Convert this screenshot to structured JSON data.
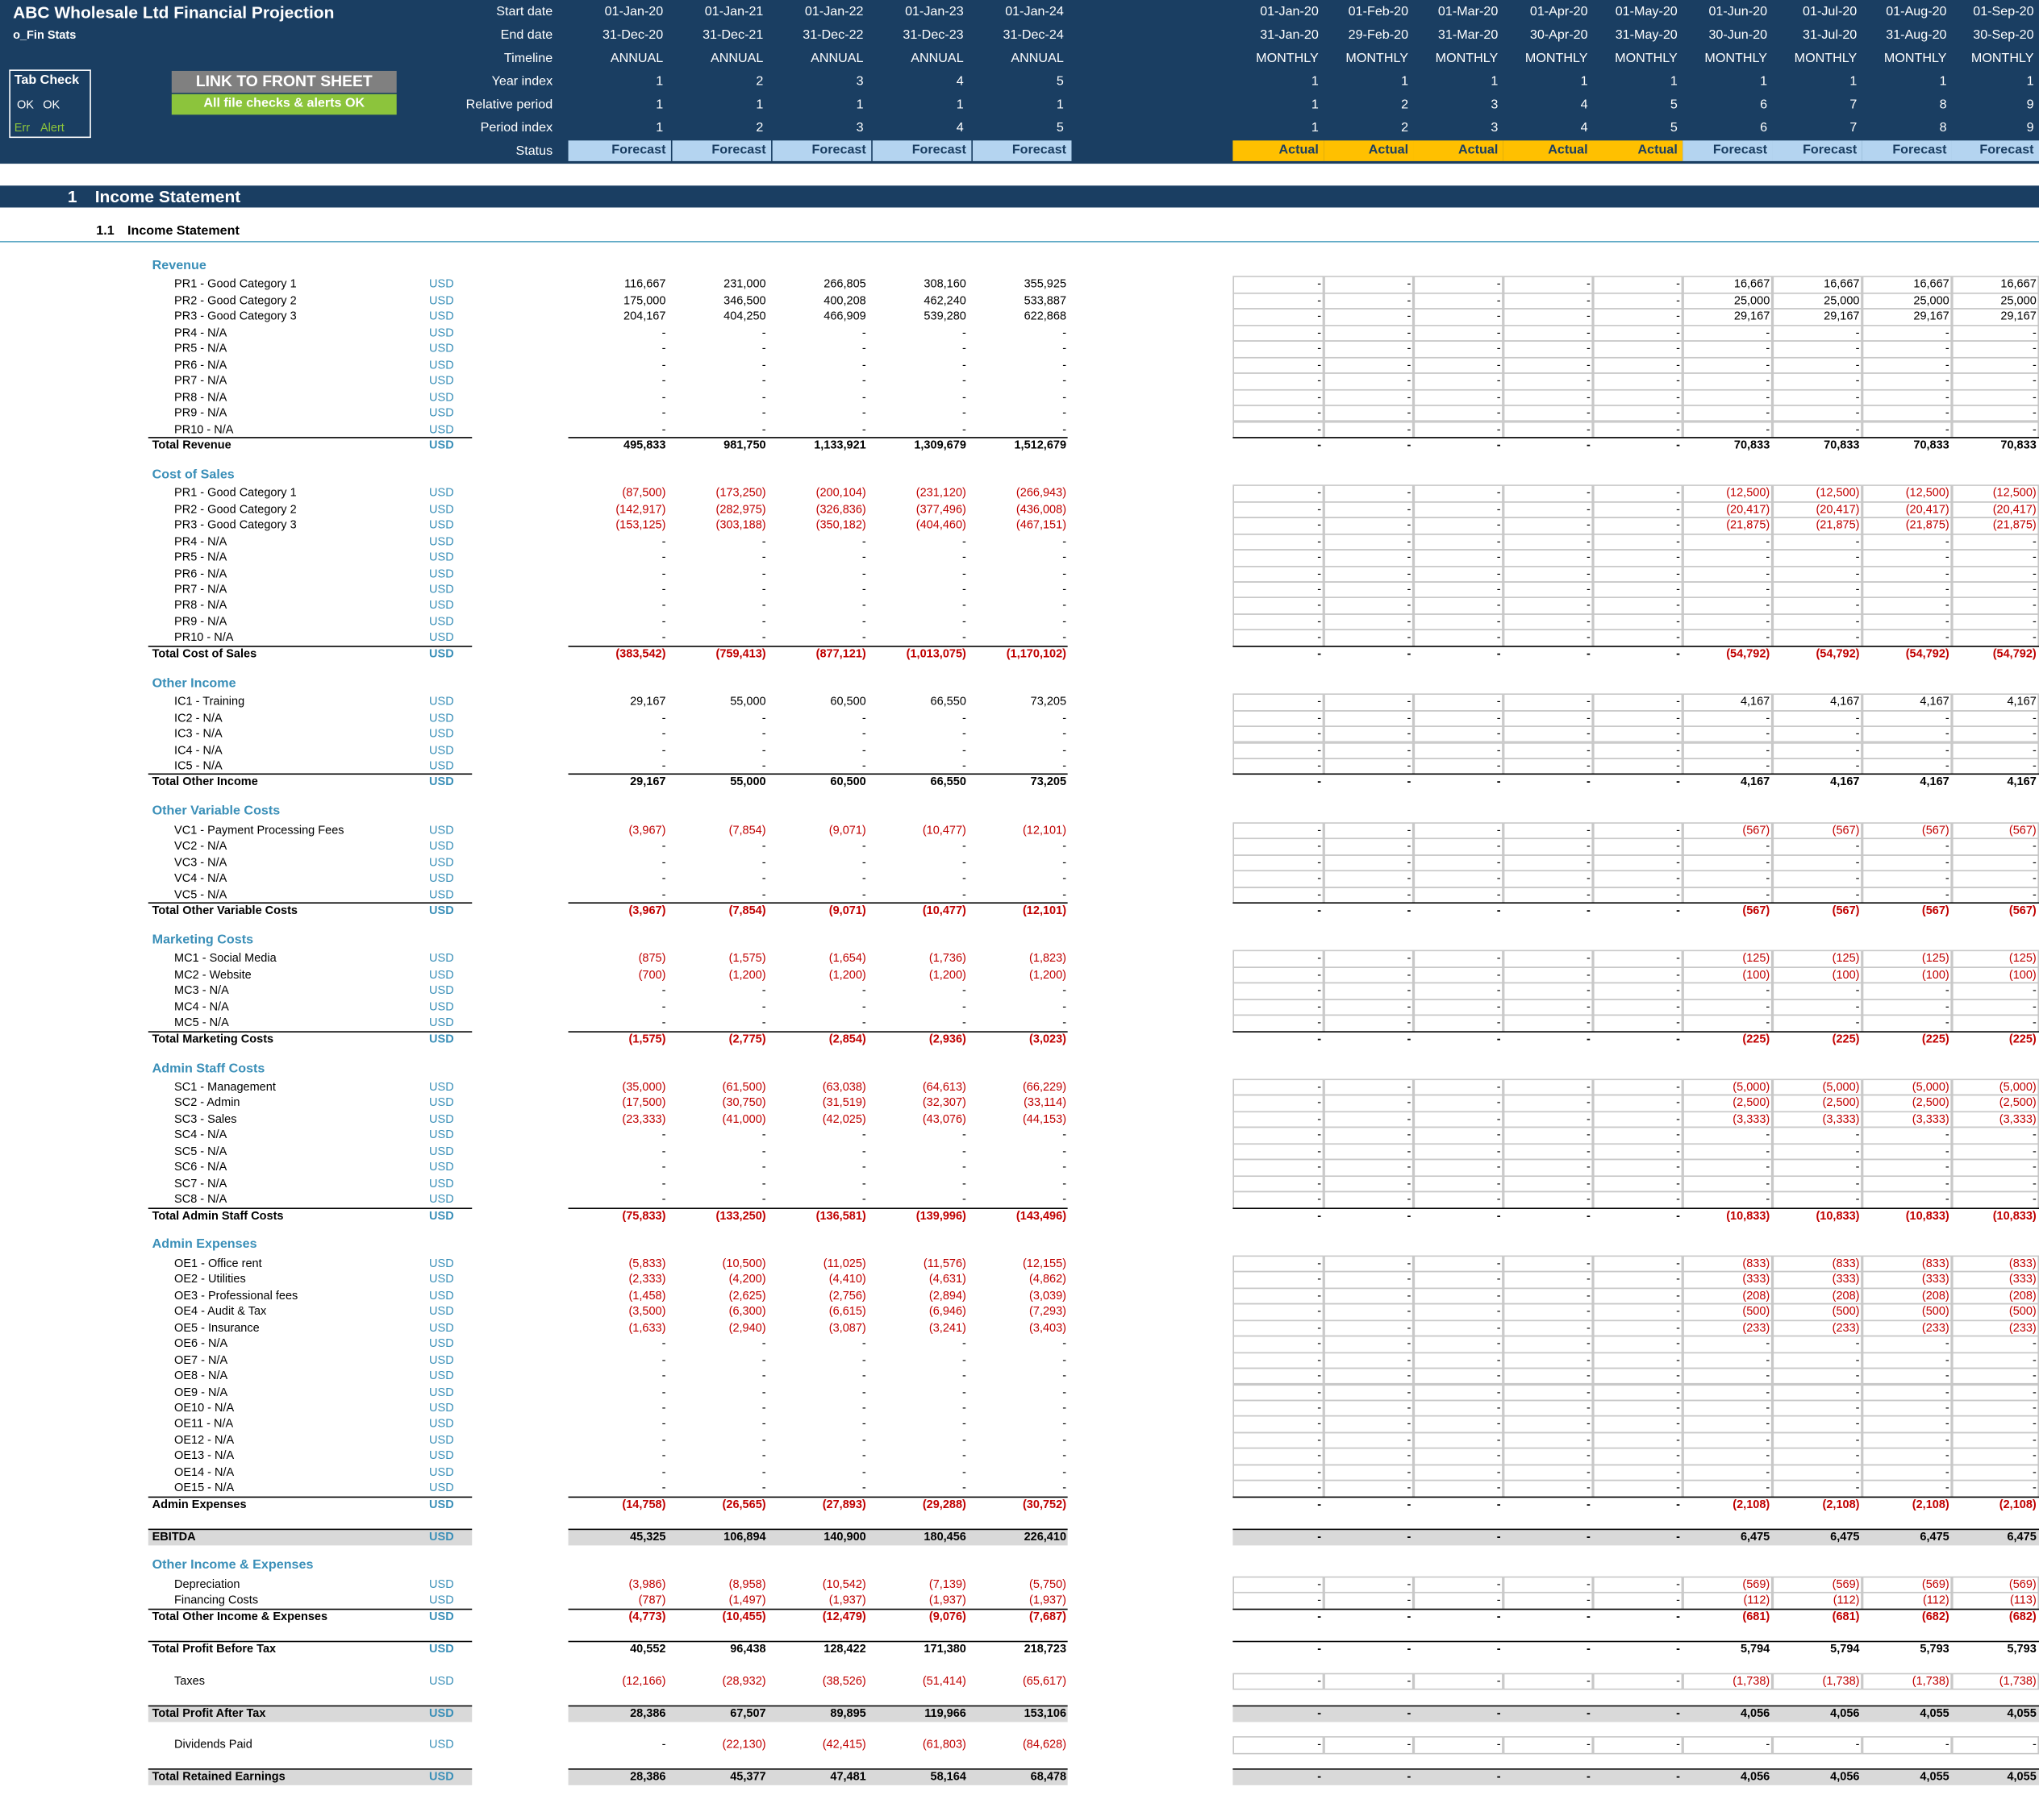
{
  "header": {
    "title": "ABC Wholesale Ltd Financial Projection",
    "sheet": "o_Fin Stats",
    "tab_check": {
      "title": "Tab Check",
      "ok1": "OK",
      "ok2": "OK",
      "err": "Err",
      "alert": "Alert"
    },
    "link_button": "LINK TO FRONT SHEET",
    "checks_ok": "All file checks & alerts OK",
    "labels": {
      "start": "Start date",
      "end": "End date",
      "timeline": "Timeline",
      "year": "Year index",
      "rel": "Relative period",
      "period": "Period index",
      "status": "Status"
    },
    "annual": {
      "start": [
        "01-Jan-20",
        "01-Jan-21",
        "01-Jan-22",
        "01-Jan-23",
        "01-Jan-24"
      ],
      "end": [
        "31-Dec-20",
        "31-Dec-21",
        "31-Dec-22",
        "31-Dec-23",
        "31-Dec-24"
      ],
      "timeline": [
        "ANNUAL",
        "ANNUAL",
        "ANNUAL",
        "ANNUAL",
        "ANNUAL"
      ],
      "year": [
        "1",
        "2",
        "3",
        "4",
        "5"
      ],
      "rel": [
        "1",
        "1",
        "1",
        "1",
        "1"
      ],
      "period": [
        "1",
        "2",
        "3",
        "4",
        "5"
      ],
      "status": [
        "Forecast",
        "Forecast",
        "Forecast",
        "Forecast",
        "Forecast"
      ]
    },
    "monthly": {
      "start": [
        "01-Jan-20",
        "01-Feb-20",
        "01-Mar-20",
        "01-Apr-20",
        "01-May-20",
        "01-Jun-20",
        "01-Jul-20",
        "01-Aug-20",
        "01-Sep-20"
      ],
      "end": [
        "31-Jan-20",
        "29-Feb-20",
        "31-Mar-20",
        "30-Apr-20",
        "31-May-20",
        "30-Jun-20",
        "31-Jul-20",
        "31-Aug-20",
        "30-Sep-20"
      ],
      "timeline": [
        "MONTHLY",
        "MONTHLY",
        "MONTHLY",
        "MONTHLY",
        "MONTHLY",
        "MONTHLY",
        "MONTHLY",
        "MONTHLY",
        "MONTHLY"
      ],
      "year": [
        "1",
        "1",
        "1",
        "1",
        "1",
        "1",
        "1",
        "1",
        "1"
      ],
      "rel": [
        "1",
        "2",
        "3",
        "4",
        "5",
        "6",
        "7",
        "8",
        "9"
      ],
      "period": [
        "1",
        "2",
        "3",
        "4",
        "5",
        "6",
        "7",
        "8",
        "9"
      ],
      "status": [
        "Actual",
        "Actual",
        "Actual",
        "Actual",
        "Actual",
        "Forecast",
        "Forecast",
        "Forecast",
        "Forecast"
      ]
    }
  },
  "section": {
    "num": "1",
    "title": "Income Statement",
    "sub_num": "1.1",
    "sub_title": "Income Statement"
  },
  "unit": "USD",
  "colors": {
    "navy": "#1a3e62",
    "forecast": "#b4d4f0",
    "actual": "#ffc000",
    "accent": "#3a8fb8",
    "negative": "#c00000",
    "grey": "#d9d9d9"
  },
  "groups": [
    {
      "title": "Revenue",
      "rows": [
        {
          "label": "PR1 - Good Category 1",
          "a": [
            "116,667",
            "231,000",
            "266,805",
            "308,160",
            "355,925"
          ],
          "m": [
            "-",
            "-",
            "-",
            "-",
            "-",
            "16,667",
            "16,667",
            "16,667",
            "16,667"
          ]
        },
        {
          "label": "PR2 - Good Category 2",
          "a": [
            "175,000",
            "346,500",
            "400,208",
            "462,240",
            "533,887"
          ],
          "m": [
            "-",
            "-",
            "-",
            "-",
            "-",
            "25,000",
            "25,000",
            "25,000",
            "25,000"
          ]
        },
        {
          "label": "PR3 - Good Category 3",
          "a": [
            "204,167",
            "404,250",
            "466,909",
            "539,280",
            "622,868"
          ],
          "m": [
            "-",
            "-",
            "-",
            "-",
            "-",
            "29,167",
            "29,167",
            "29,167",
            "29,167"
          ]
        },
        {
          "label": "PR4 - N/A"
        },
        {
          "label": "PR5 - N/A"
        },
        {
          "label": "PR6 - N/A"
        },
        {
          "label": "PR7 - N/A"
        },
        {
          "label": "PR8 - N/A"
        },
        {
          "label": "PR9 - N/A"
        },
        {
          "label": "PR10 - N/A"
        }
      ],
      "total": {
        "label": "Total Revenue",
        "a": [
          "495,833",
          "981,750",
          "1,133,921",
          "1,309,679",
          "1,512,679"
        ],
        "m": [
          "-",
          "-",
          "-",
          "-",
          "-",
          "70,833",
          "70,833",
          "70,833",
          "70,833"
        ]
      }
    },
    {
      "title": "Cost of Sales",
      "rows": [
        {
          "label": "PR1 - Good Category 1",
          "a": [
            "(87,500)",
            "(173,250)",
            "(200,104)",
            "(231,120)",
            "(266,943)"
          ],
          "m": [
            "-",
            "-",
            "-",
            "-",
            "-",
            "(12,500)",
            "(12,500)",
            "(12,500)",
            "(12,500)"
          ]
        },
        {
          "label": "PR2 - Good Category 2",
          "a": [
            "(142,917)",
            "(282,975)",
            "(326,836)",
            "(377,496)",
            "(436,008)"
          ],
          "m": [
            "-",
            "-",
            "-",
            "-",
            "-",
            "(20,417)",
            "(20,417)",
            "(20,417)",
            "(20,417)"
          ]
        },
        {
          "label": "PR3 - Good Category 3",
          "a": [
            "(153,125)",
            "(303,188)",
            "(350,182)",
            "(404,460)",
            "(467,151)"
          ],
          "m": [
            "-",
            "-",
            "-",
            "-",
            "-",
            "(21,875)",
            "(21,875)",
            "(21,875)",
            "(21,875)"
          ]
        },
        {
          "label": "PR4 - N/A"
        },
        {
          "label": "PR5 - N/A"
        },
        {
          "label": "PR6 - N/A"
        },
        {
          "label": "PR7 - N/A"
        },
        {
          "label": "PR8 - N/A"
        },
        {
          "label": "PR9 - N/A"
        },
        {
          "label": "PR10 - N/A"
        }
      ],
      "total": {
        "label": "Total Cost of Sales",
        "a": [
          "(383,542)",
          "(759,413)",
          "(877,121)",
          "(1,013,075)",
          "(1,170,102)"
        ],
        "m": [
          "-",
          "-",
          "-",
          "-",
          "-",
          "(54,792)",
          "(54,792)",
          "(54,792)",
          "(54,792)"
        ]
      }
    },
    {
      "title": "Other Income",
      "rows": [
        {
          "label": "IC1 - Training",
          "a": [
            "29,167",
            "55,000",
            "60,500",
            "66,550",
            "73,205"
          ],
          "m": [
            "-",
            "-",
            "-",
            "-",
            "-",
            "4,167",
            "4,167",
            "4,167",
            "4,167"
          ]
        },
        {
          "label": "IC2 - N/A"
        },
        {
          "label": "IC3 - N/A"
        },
        {
          "label": "IC4 - N/A"
        },
        {
          "label": "IC5 - N/A"
        }
      ],
      "total": {
        "label": "Total Other Income",
        "a": [
          "29,167",
          "55,000",
          "60,500",
          "66,550",
          "73,205"
        ],
        "m": [
          "-",
          "-",
          "-",
          "-",
          "-",
          "4,167",
          "4,167",
          "4,167",
          "4,167"
        ]
      }
    },
    {
      "title": "Other Variable Costs",
      "rows": [
        {
          "label": "VC1 - Payment Processing Fees",
          "a": [
            "(3,967)",
            "(7,854)",
            "(9,071)",
            "(10,477)",
            "(12,101)"
          ],
          "m": [
            "-",
            "-",
            "-",
            "-",
            "-",
            "(567)",
            "(567)",
            "(567)",
            "(567)"
          ]
        },
        {
          "label": "VC2 - N/A"
        },
        {
          "label": "VC3 - N/A"
        },
        {
          "label": "VC4 - N/A"
        },
        {
          "label": "VC5 - N/A"
        }
      ],
      "total": {
        "label": "Total Other Variable Costs",
        "a": [
          "(3,967)",
          "(7,854)",
          "(9,071)",
          "(10,477)",
          "(12,101)"
        ],
        "m": [
          "-",
          "-",
          "-",
          "-",
          "-",
          "(567)",
          "(567)",
          "(567)",
          "(567)"
        ]
      }
    },
    {
      "title": "Marketing Costs",
      "rows": [
        {
          "label": "MC1 - Social Media",
          "a": [
            "(875)",
            "(1,575)",
            "(1,654)",
            "(1,736)",
            "(1,823)"
          ],
          "m": [
            "-",
            "-",
            "-",
            "-",
            "-",
            "(125)",
            "(125)",
            "(125)",
            "(125)"
          ]
        },
        {
          "label": "MC2 - Website",
          "a": [
            "(700)",
            "(1,200)",
            "(1,200)",
            "(1,200)",
            "(1,200)"
          ],
          "m": [
            "-",
            "-",
            "-",
            "-",
            "-",
            "(100)",
            "(100)",
            "(100)",
            "(100)"
          ]
        },
        {
          "label": "MC3 - N/A"
        },
        {
          "label": "MC4 - N/A"
        },
        {
          "label": "MC5 - N/A"
        }
      ],
      "total": {
        "label": "Total Marketing Costs",
        "a": [
          "(1,575)",
          "(2,775)",
          "(2,854)",
          "(2,936)",
          "(3,023)"
        ],
        "m": [
          "-",
          "-",
          "-",
          "-",
          "-",
          "(225)",
          "(225)",
          "(225)",
          "(225)"
        ]
      }
    },
    {
      "title": "Admin Staff Costs",
      "rows": [
        {
          "label": "SC1 - Management",
          "a": [
            "(35,000)",
            "(61,500)",
            "(63,038)",
            "(64,613)",
            "(66,229)"
          ],
          "m": [
            "-",
            "-",
            "-",
            "-",
            "-",
            "(5,000)",
            "(5,000)",
            "(5,000)",
            "(5,000)"
          ]
        },
        {
          "label": "SC2 - Admin",
          "a": [
            "(17,500)",
            "(30,750)",
            "(31,519)",
            "(32,307)",
            "(33,114)"
          ],
          "m": [
            "-",
            "-",
            "-",
            "-",
            "-",
            "(2,500)",
            "(2,500)",
            "(2,500)",
            "(2,500)"
          ]
        },
        {
          "label": "SC3 - Sales",
          "a": [
            "(23,333)",
            "(41,000)",
            "(42,025)",
            "(43,076)",
            "(44,153)"
          ],
          "m": [
            "-",
            "-",
            "-",
            "-",
            "-",
            "(3,333)",
            "(3,333)",
            "(3,333)",
            "(3,333)"
          ]
        },
        {
          "label": "SC4 - N/A"
        },
        {
          "label": "SC5 - N/A"
        },
        {
          "label": "SC6 - N/A"
        },
        {
          "label": "SC7 - N/A"
        },
        {
          "label": "SC8 - N/A"
        }
      ],
      "total": {
        "label": "Total Admin Staff Costs",
        "a": [
          "(75,833)",
          "(133,250)",
          "(136,581)",
          "(139,996)",
          "(143,496)"
        ],
        "m": [
          "-",
          "-",
          "-",
          "-",
          "-",
          "(10,833)",
          "(10,833)",
          "(10,833)",
          "(10,833)"
        ]
      }
    },
    {
      "title": "Admin Expenses",
      "rows": [
        {
          "label": "OE1 - Office rent",
          "a": [
            "(5,833)",
            "(10,500)",
            "(11,025)",
            "(11,576)",
            "(12,155)"
          ],
          "m": [
            "-",
            "-",
            "-",
            "-",
            "-",
            "(833)",
            "(833)",
            "(833)",
            "(833)"
          ]
        },
        {
          "label": "OE2 - Utilities",
          "a": [
            "(2,333)",
            "(4,200)",
            "(4,410)",
            "(4,631)",
            "(4,862)"
          ],
          "m": [
            "-",
            "-",
            "-",
            "-",
            "-",
            "(333)",
            "(333)",
            "(333)",
            "(333)"
          ]
        },
        {
          "label": "OE3 - Professional fees",
          "a": [
            "(1,458)",
            "(2,625)",
            "(2,756)",
            "(2,894)",
            "(3,039)"
          ],
          "m": [
            "-",
            "-",
            "-",
            "-",
            "-",
            "(208)",
            "(208)",
            "(208)",
            "(208)"
          ]
        },
        {
          "label": "OE4 - Audit & Tax",
          "a": [
            "(3,500)",
            "(6,300)",
            "(6,615)",
            "(6,946)",
            "(7,293)"
          ],
          "m": [
            "-",
            "-",
            "-",
            "-",
            "-",
            "(500)",
            "(500)",
            "(500)",
            "(500)"
          ]
        },
        {
          "label": "OE5 - Insurance",
          "a": [
            "(1,633)",
            "(2,940)",
            "(3,087)",
            "(3,241)",
            "(3,403)"
          ],
          "m": [
            "-",
            "-",
            "-",
            "-",
            "-",
            "(233)",
            "(233)",
            "(233)",
            "(233)"
          ]
        },
        {
          "label": "OE6 - N/A"
        },
        {
          "label": "OE7 - N/A"
        },
        {
          "label": "OE8 - N/A"
        },
        {
          "label": "OE9 - N/A"
        },
        {
          "label": "OE10 - N/A"
        },
        {
          "label": "OE11 - N/A"
        },
        {
          "label": "OE12 - N/A"
        },
        {
          "label": "OE13 - N/A"
        },
        {
          "label": "OE14 - N/A"
        },
        {
          "label": "OE15 - N/A"
        }
      ],
      "total": {
        "label": "Admin Expenses",
        "a": [
          "(14,758)",
          "(26,565)",
          "(27,893)",
          "(29,288)",
          "(30,752)"
        ],
        "m": [
          "-",
          "-",
          "-",
          "-",
          "-",
          "(2,108)",
          "(2,108)",
          "(2,108)",
          "(2,108)"
        ]
      }
    },
    {
      "highlight": true,
      "total": {
        "label": "EBITDA",
        "a": [
          "45,325",
          "106,894",
          "140,900",
          "180,456",
          "226,410"
        ],
        "m": [
          "-",
          "-",
          "-",
          "-",
          "-",
          "6,475",
          "6,475",
          "6,475",
          "6,475"
        ]
      }
    },
    {
      "title": "Other Income & Expenses",
      "rows": [
        {
          "label": "Depreciation",
          "a": [
            "(3,986)",
            "(8,958)",
            "(10,542)",
            "(7,139)",
            "(5,750)"
          ],
          "m": [
            "-",
            "-",
            "-",
            "-",
            "-",
            "(569)",
            "(569)",
            "(569)",
            "(569)"
          ]
        },
        {
          "label": "Financing Costs",
          "a": [
            "(787)",
            "(1,497)",
            "(1,937)",
            "(1,937)",
            "(1,937)"
          ],
          "m": [
            "-",
            "-",
            "-",
            "-",
            "-",
            "(112)",
            "(112)",
            "(112)",
            "(113)"
          ]
        }
      ],
      "total": {
        "label": "Total Other Income & Expenses",
        "a": [
          "(4,773)",
          "(10,455)",
          "(12,479)",
          "(9,076)",
          "(7,687)"
        ],
        "m": [
          "-",
          "-",
          "-",
          "-",
          "-",
          "(681)",
          "(681)",
          "(682)",
          "(682)"
        ]
      }
    },
    {
      "total": {
        "label": "Total Profit Before Tax",
        "a": [
          "40,552",
          "96,438",
          "128,422",
          "171,380",
          "218,723"
        ],
        "m": [
          "-",
          "-",
          "-",
          "-",
          "-",
          "5,794",
          "5,794",
          "5,793",
          "5,793"
        ]
      }
    },
    {
      "rows": [
        {
          "label": "Taxes",
          "a": [
            "(12,166)",
            "(28,932)",
            "(38,526)",
            "(51,414)",
            "(65,617)"
          ],
          "m": [
            "-",
            "-",
            "-",
            "-",
            "-",
            "(1,738)",
            "(1,738)",
            "(1,738)",
            "(1,738)"
          ]
        }
      ]
    },
    {
      "highlight": true,
      "total": {
        "label": "Total Profit After Tax",
        "a": [
          "28,386",
          "67,507",
          "89,895",
          "119,966",
          "153,106"
        ],
        "m": [
          "-",
          "-",
          "-",
          "-",
          "-",
          "4,056",
          "4,056",
          "4,055",
          "4,055"
        ]
      }
    },
    {
      "rows": [
        {
          "label": "Dividends Paid",
          "a": [
            "-",
            "(22,130)",
            "(42,415)",
            "(61,803)",
            "(84,628)"
          ],
          "m": [
            "-",
            "-",
            "-",
            "-",
            "-",
            "-",
            "-",
            "-",
            "-"
          ]
        }
      ]
    },
    {
      "highlight": true,
      "total": {
        "label": "Total Retained Earnings",
        "a": [
          "28,386",
          "45,377",
          "47,481",
          "58,164",
          "68,478"
        ],
        "m": [
          "-",
          "-",
          "-",
          "-",
          "-",
          "4,056",
          "4,056",
          "4,055",
          "4,055"
        ]
      }
    }
  ]
}
